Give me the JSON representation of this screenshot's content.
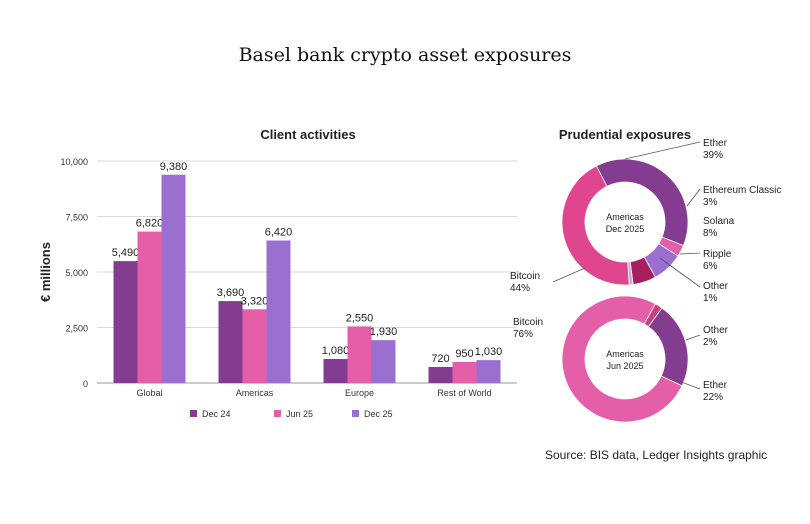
{
  "title": "Basel bank crypto asset exposures",
  "source": "Source: BIS data, Ledger Insights  graphic",
  "colors": {
    "dec24": "#843c91",
    "jun25": "#e55ea8",
    "dec25": "#9b6fd0",
    "ether": "#843c91",
    "ethereum_classic": "#e55ea8",
    "solana": "#9b6fd0",
    "ripple": "#a61f5e",
    "other": "#c9a8e6",
    "bitcoin": "#e0468f",
    "bitcoin_jun": "#e55ea8",
    "other_jun": "#c9407e"
  },
  "chart_data": [
    {
      "type": "bar",
      "title": "Client activities",
      "xlabel": "",
      "ylabel": "€ millions",
      "ylim": [
        0,
        10000
      ],
      "yticks": [
        0,
        2500,
        5000,
        7500,
        10000
      ],
      "ytick_labels": [
        "0",
        "2,500",
        "5,000",
        "7,500",
        "10,000"
      ],
      "grid": true,
      "legend_position": "bottom",
      "categories": [
        "Global",
        "Americas",
        "Europe",
        "Rest of World"
      ],
      "series": [
        {
          "name": "Dec 24",
          "values": [
            5490,
            3690,
            1080,
            720
          ],
          "labels": [
            "5,490",
            "3,690",
            "1,080",
            "720"
          ]
        },
        {
          "name": "Jun 25",
          "values": [
            6820,
            3320,
            2550,
            950
          ],
          "labels": [
            "6,820",
            "3,320",
            "2,550",
            "950"
          ]
        },
        {
          "name": "Dec 25",
          "values": [
            9380,
            6420,
            1930,
            1030
          ],
          "labels": [
            "9,380",
            "6,420",
            "1,930",
            "1,030"
          ]
        }
      ]
    },
    {
      "type": "pie",
      "title": "Prudential exposures",
      "center_label": [
        "Americas",
        "Dec 2025"
      ],
      "slices": [
        {
          "name": "Ether",
          "value": 39,
          "label": "39%"
        },
        {
          "name": "Ethereum Classic",
          "value": 3,
          "label": "3%"
        },
        {
          "name": "Solana",
          "value": 8,
          "label": "8%"
        },
        {
          "name": "Ripple",
          "value": 6,
          "label": "6%"
        },
        {
          "name": "Other",
          "value": 1,
          "label": "1%"
        },
        {
          "name": "Bitcoin",
          "value": 44,
          "label": "44%"
        }
      ]
    },
    {
      "type": "pie",
      "title": "",
      "center_label": [
        "Americas",
        "Jun 2025"
      ],
      "slices": [
        {
          "name": "Other",
          "value": 2,
          "label": "2%"
        },
        {
          "name": "Ether",
          "value": 22,
          "label": "22%"
        },
        {
          "name": "Bitcoin",
          "value": 76,
          "label": "76%"
        }
      ]
    }
  ]
}
